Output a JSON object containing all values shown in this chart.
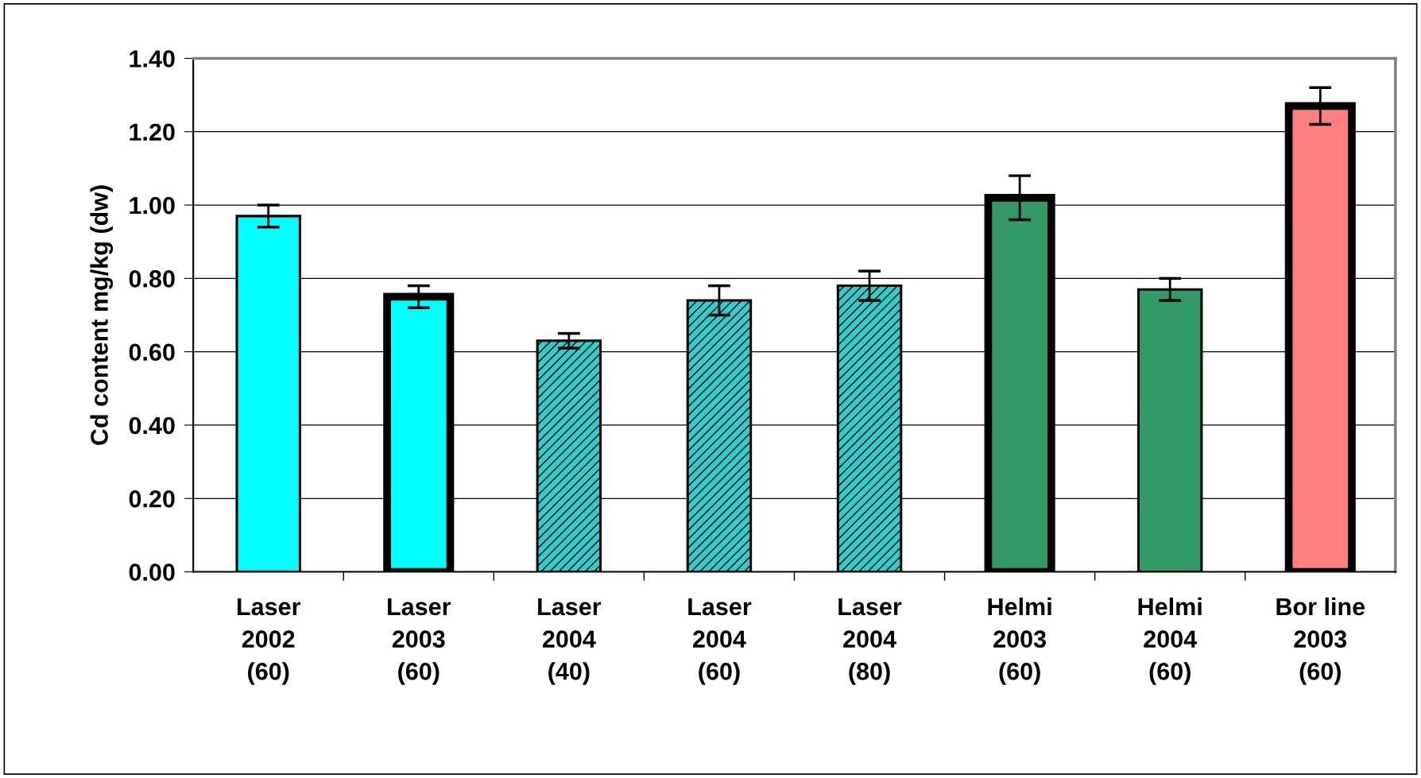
{
  "chart_data": {
    "type": "bar",
    "ylabel": "Cd content mg/kg (dw)",
    "categories": [
      "Laser\n2002\n(60)",
      "Laser\n2003\n(60)",
      "Laser\n2004\n(40)",
      "Laser\n2004\n(60)",
      "Laser\n2004\n(80)",
      "Helmi\n2003\n(60)",
      "Helmi\n2004\n(60)",
      "Bor line\n2003\n(60)"
    ],
    "values": [
      0.97,
      0.75,
      0.63,
      0.74,
      0.78,
      1.02,
      0.77,
      1.27
    ],
    "errors": [
      0.03,
      0.03,
      0.02,
      0.04,
      0.04,
      0.06,
      0.03,
      0.05
    ],
    "colors": [
      "#00ffff",
      "#00ffff",
      "#33cccc",
      "#33cccc",
      "#33cccc",
      "#339966",
      "#339966",
      "#ff8080"
    ],
    "ylim": [
      0,
      1.4
    ],
    "yticks": [
      {
        "value": 0,
        "label": "0.00"
      },
      {
        "value": 0.2,
        "label": "0.20"
      },
      {
        "value": 0.4,
        "label": "0.40"
      },
      {
        "value": 0.6,
        "label": "0.60"
      },
      {
        "value": 0.8,
        "label": "0.80"
      },
      {
        "value": 1.0,
        "label": "1.00"
      },
      {
        "value": 1.2,
        "label": "1.20"
      },
      {
        "value": 1.4,
        "label": "1.40"
      }
    ],
    "grid": "y"
  }
}
